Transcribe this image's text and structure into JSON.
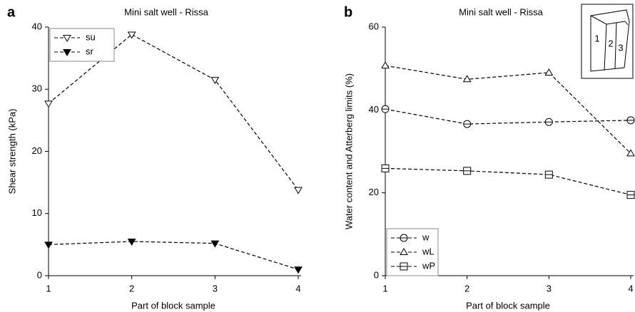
{
  "chart_data": [
    {
      "type": "line",
      "panel_label": "a",
      "title": "Mini salt well - Rissa",
      "x_label": "Part of block sample",
      "y_label": "Shear strength (kPa)",
      "x": [
        1,
        2,
        3,
        4
      ],
      "xlim": [
        1,
        4
      ],
      "xticks": [
        1,
        2,
        3,
        4
      ],
      "ylim": [
        0,
        40
      ],
      "yticks": [
        0,
        10,
        20,
        30,
        40
      ],
      "legend": "upper left",
      "series": [
        {
          "name": "su",
          "color": "#000000",
          "marker": "triangle-down-open",
          "values": [
            27.7,
            38.8,
            31.5,
            13.8
          ]
        },
        {
          "name": "sr",
          "color": "#000000",
          "marker": "triangle-down-filled",
          "values": [
            5.0,
            5.5,
            5.2,
            1.0
          ]
        }
      ]
    },
    {
      "type": "line",
      "panel_label": "b",
      "title": "Mini salt well - Rissa",
      "x_label": "Part of block sample",
      "y_label": "Water content and Atterberg limits (%)",
      "x": [
        1,
        2,
        3,
        4
      ],
      "xlim": [
        1,
        4
      ],
      "xticks": [
        1,
        2,
        3,
        4
      ],
      "ylim": [
        0,
        60
      ],
      "yticks": [
        0,
        20,
        40,
        60
      ],
      "legend": "lower left",
      "inset_labels": [
        "1",
        "2",
        "3"
      ],
      "series": [
        {
          "name": "w",
          "color": "#000000",
          "marker": "circle-bar",
          "values": [
            40.2,
            36.6,
            37.1,
            37.5
          ]
        },
        {
          "name": "wL",
          "color": "#000000",
          "marker": "triangle-up-open",
          "values": [
            50.7,
            47.4,
            49.0,
            29.5
          ]
        },
        {
          "name": "wP",
          "color": "#000000",
          "marker": "square-bar",
          "values": [
            25.9,
            25.3,
            24.4,
            19.5
          ]
        }
      ]
    }
  ]
}
